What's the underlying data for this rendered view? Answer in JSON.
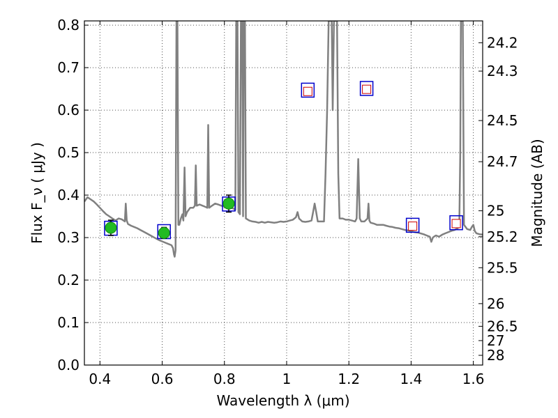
{
  "chart_data": {
    "type": "line",
    "title": "",
    "xlabel": "Wavelength  λ (μm)",
    "ylabel": "Flux  F_ν  ( μJy )",
    "ylabel_right": "Magnitude (AB)",
    "xlim": [
      0.35,
      1.63
    ],
    "ylim": [
      0.0,
      0.81
    ],
    "grid": true,
    "x_ticks": [
      0.4,
      0.6,
      0.8,
      1.0,
      1.2,
      1.4,
      1.6
    ],
    "x_tick_labels": [
      "0.4",
      "0.6",
      "0.8",
      "1",
      "1.2",
      "1.4",
      "1.6"
    ],
    "y_ticks": [
      0.0,
      0.1,
      0.2,
      0.3,
      0.4,
      0.5,
      0.6,
      0.7,
      0.8
    ],
    "y_tick_labels": [
      "0.0",
      "0.1",
      "0.2",
      "0.3",
      "0.4",
      "0.5",
      "0.6",
      "0.7",
      "0.8"
    ],
    "right_ticks": [
      {
        "label": "24.2",
        "mag": 24.2
      },
      {
        "label": "24.3",
        "mag": 24.3
      },
      {
        "label": "24.5",
        "mag": 24.5
      },
      {
        "label": "24.7",
        "mag": 24.7
      },
      {
        "label": "25",
        "mag": 25.0
      },
      {
        "label": "25.2",
        "mag": 25.2
      },
      {
        "label": "25.5",
        "mag": 25.5
      },
      {
        "label": "26",
        "mag": 26.0
      },
      {
        "label": "26.5",
        "mag": 26.5
      },
      {
        "label": "27",
        "mag": 27.0
      },
      {
        "label": "28",
        "mag": 28.0
      }
    ],
    "model_spectrum": {
      "color": "#808080",
      "points": [
        [
          0.35,
          0.385
        ],
        [
          0.36,
          0.395
        ],
        [
          0.37,
          0.39
        ],
        [
          0.38,
          0.385
        ],
        [
          0.39,
          0.378
        ],
        [
          0.4,
          0.37
        ],
        [
          0.41,
          0.362
        ],
        [
          0.42,
          0.355
        ],
        [
          0.43,
          0.35
        ],
        [
          0.44,
          0.345
        ],
        [
          0.45,
          0.34
        ],
        [
          0.46,
          0.345
        ],
        [
          0.47,
          0.343
        ],
        [
          0.48,
          0.338
        ],
        [
          0.483,
          0.38
        ],
        [
          0.486,
          0.34
        ],
        [
          0.49,
          0.332
        ],
        [
          0.5,
          0.328
        ],
        [
          0.51,
          0.325
        ],
        [
          0.52,
          0.322
        ],
        [
          0.53,
          0.318
        ],
        [
          0.54,
          0.314
        ],
        [
          0.55,
          0.31
        ],
        [
          0.56,
          0.306
        ],
        [
          0.57,
          0.302
        ],
        [
          0.58,
          0.298
        ],
        [
          0.59,
          0.294
        ],
        [
          0.6,
          0.291
        ],
        [
          0.61,
          0.288
        ],
        [
          0.62,
          0.285
        ],
        [
          0.63,
          0.282
        ],
        [
          0.635,
          0.275
        ],
        [
          0.638,
          0.26
        ],
        [
          0.64,
          0.255
        ],
        [
          0.643,
          0.27
        ],
        [
          0.646,
          0.81
        ],
        [
          0.649,
          0.81
        ],
        [
          0.652,
          0.33
        ],
        [
          0.655,
          0.33
        ],
        [
          0.66,
          0.345
        ],
        [
          0.665,
          0.355
        ],
        [
          0.668,
          0.34
        ],
        [
          0.672,
          0.465
        ],
        [
          0.675,
          0.35
        ],
        [
          0.68,
          0.36
        ],
        [
          0.69,
          0.37
        ],
        [
          0.7,
          0.37
        ],
        [
          0.705,
          0.375
        ],
        [
          0.708,
          0.47
        ],
        [
          0.711,
          0.375
        ],
        [
          0.72,
          0.378
        ],
        [
          0.73,
          0.375
        ],
        [
          0.74,
          0.372
        ],
        [
          0.745,
          0.37
        ],
        [
          0.748,
          0.565
        ],
        [
          0.751,
          0.37
        ],
        [
          0.76,
          0.375
        ],
        [
          0.77,
          0.38
        ],
        [
          0.78,
          0.378
        ],
        [
          0.79,
          0.375
        ],
        [
          0.8,
          0.373
        ],
        [
          0.81,
          0.372
        ],
        [
          0.82,
          0.37
        ],
        [
          0.83,
          0.368
        ],
        [
          0.835,
          0.365
        ],
        [
          0.838,
          0.81
        ],
        [
          0.842,
          0.81
        ],
        [
          0.845,
          0.36
        ],
        [
          0.85,
          0.355
        ],
        [
          0.853,
          0.81
        ],
        [
          0.857,
          0.81
        ],
        [
          0.86,
          0.35
        ],
        [
          0.862,
          0.81
        ],
        [
          0.866,
          0.81
        ],
        [
          0.869,
          0.345
        ],
        [
          0.88,
          0.34
        ],
        [
          0.89,
          0.338
        ],
        [
          0.9,
          0.337
        ],
        [
          0.91,
          0.335
        ],
        [
          0.92,
          0.337
        ],
        [
          0.93,
          0.335
        ],
        [
          0.94,
          0.337
        ],
        [
          0.95,
          0.336
        ],
        [
          0.96,
          0.335
        ],
        [
          0.97,
          0.336
        ],
        [
          0.98,
          0.338
        ],
        [
          0.99,
          0.337
        ],
        [
          1.0,
          0.338
        ],
        [
          1.01,
          0.34
        ],
        [
          1.02,
          0.342
        ],
        [
          1.03,
          0.348
        ],
        [
          1.035,
          0.36
        ],
        [
          1.04,
          0.345
        ],
        [
          1.05,
          0.338
        ],
        [
          1.06,
          0.337
        ],
        [
          1.07,
          0.338
        ],
        [
          1.08,
          0.34
        ],
        [
          1.085,
          0.36
        ],
        [
          1.09,
          0.38
        ],
        [
          1.095,
          0.36
        ],
        [
          1.1,
          0.338
        ],
        [
          1.12,
          0.338
        ],
        [
          1.125,
          0.45
        ],
        [
          1.13,
          0.6
        ],
        [
          1.135,
          0.81
        ],
        [
          1.145,
          0.81
        ],
        [
          1.148,
          0.6
        ],
        [
          1.152,
          0.81
        ],
        [
          1.162,
          0.81
        ],
        [
          1.166,
          0.45
        ],
        [
          1.17,
          0.345
        ],
        [
          1.18,
          0.345
        ],
        [
          1.19,
          0.342
        ],
        [
          1.2,
          0.342
        ],
        [
          1.21,
          0.34
        ],
        [
          1.22,
          0.338
        ],
        [
          1.225,
          0.345
        ],
        [
          1.23,
          0.485
        ],
        [
          1.235,
          0.345
        ],
        [
          1.24,
          0.338
        ],
        [
          1.25,
          0.338
        ],
        [
          1.26,
          0.345
        ],
        [
          1.263,
          0.38
        ],
        [
          1.266,
          0.34
        ],
        [
          1.27,
          0.335
        ],
        [
          1.28,
          0.333
        ],
        [
          1.29,
          0.33
        ],
        [
          1.3,
          0.33
        ],
        [
          1.31,
          0.33
        ],
        [
          1.32,
          0.328
        ],
        [
          1.33,
          0.326
        ],
        [
          1.34,
          0.325
        ],
        [
          1.35,
          0.323
        ],
        [
          1.36,
          0.322
        ],
        [
          1.37,
          0.32
        ],
        [
          1.38,
          0.318
        ],
        [
          1.39,
          0.317
        ],
        [
          1.4,
          0.315
        ],
        [
          1.41,
          0.313
        ],
        [
          1.42,
          0.312
        ],
        [
          1.43,
          0.31
        ],
        [
          1.44,
          0.308
        ],
        [
          1.45,
          0.305
        ],
        [
          1.46,
          0.302
        ],
        [
          1.465,
          0.29
        ],
        [
          1.47,
          0.3
        ],
        [
          1.475,
          0.303
        ],
        [
          1.48,
          0.305
        ],
        [
          1.49,
          0.302
        ],
        [
          1.5,
          0.307
        ],
        [
          1.51,
          0.31
        ],
        [
          1.52,
          0.313
        ],
        [
          1.53,
          0.316
        ],
        [
          1.54,
          0.318
        ],
        [
          1.55,
          0.322
        ],
        [
          1.555,
          0.33
        ],
        [
          1.558,
          0.5
        ],
        [
          1.56,
          0.81
        ],
        [
          1.566,
          0.81
        ],
        [
          1.57,
          0.33
        ],
        [
          1.58,
          0.32
        ],
        [
          1.59,
          0.318
        ],
        [
          1.595,
          0.325
        ],
        [
          1.6,
          0.33
        ],
        [
          1.605,
          0.315
        ],
        [
          1.61,
          0.31
        ],
        [
          1.62,
          0.308
        ],
        [
          1.63,
          0.307
        ]
      ]
    },
    "observed_points": {
      "color": "#22bb22",
      "x": [
        0.435,
        0.606,
        0.814
      ],
      "y": [
        0.323,
        0.311,
        0.38
      ],
      "yerr": [
        0.018,
        0.013,
        0.02
      ]
    },
    "model_photometry_blue": {
      "color": "#0000cc",
      "x": [
        0.435,
        0.606,
        0.814,
        1.068,
        1.257,
        1.405,
        1.545
      ],
      "y": [
        0.322,
        0.314,
        0.379,
        0.647,
        0.651,
        0.329,
        0.335
      ]
    },
    "upper_limit_points_red": {
      "color": "#cc0000",
      "x": [
        1.068,
        1.257,
        1.405,
        1.545
      ],
      "y": [
        0.644,
        0.649,
        0.327,
        0.333
      ]
    }
  }
}
